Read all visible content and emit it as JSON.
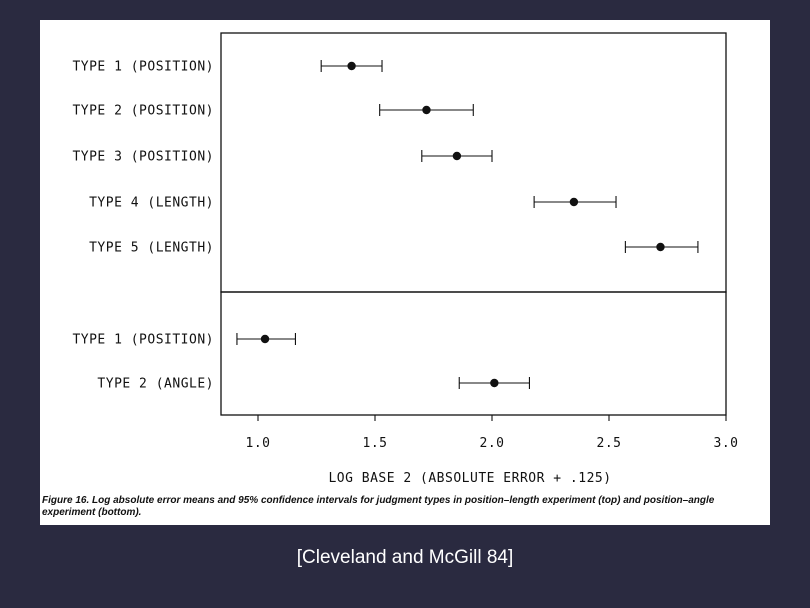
{
  "chart_data": {
    "type": "scatter",
    "xlabel": "LOG BASE 2 (ABSOLUTE ERROR + .125)",
    "xlim": [
      0.85,
      3.0
    ],
    "xticks": [
      "1.0",
      "1.5",
      "2.0",
      "2.5",
      "3.0"
    ],
    "panels": [
      {
        "name": "top",
        "points": [
          {
            "label": "TYPE 1 (POSITION)",
            "mean": 1.4,
            "low": 1.27,
            "high": 1.53
          },
          {
            "label": "TYPE 2 (POSITION)",
            "mean": 1.72,
            "low": 1.52,
            "high": 1.92
          },
          {
            "label": "TYPE 3 (POSITION)",
            "mean": 1.85,
            "low": 1.7,
            "high": 2.0
          },
          {
            "label": "TYPE 4 (LENGTH)",
            "mean": 2.35,
            "low": 2.18,
            "high": 2.53
          },
          {
            "label": "TYPE 5 (LENGTH)",
            "mean": 2.72,
            "low": 2.57,
            "high": 2.88
          }
        ]
      },
      {
        "name": "bottom",
        "points": [
          {
            "label": "TYPE 1 (POSITION)",
            "mean": 1.03,
            "low": 0.91,
            "high": 1.16
          },
          {
            "label": "TYPE 2 (ANGLE)",
            "mean": 2.01,
            "low": 1.86,
            "high": 2.16
          }
        ]
      }
    ]
  },
  "caption": "Figure 16. Log absolute error means and 95% confidence intervals for judgment types in position–length experiment (top) and position–angle experiment (bottom).",
  "citation": "[Cleveland and McGill 84]"
}
